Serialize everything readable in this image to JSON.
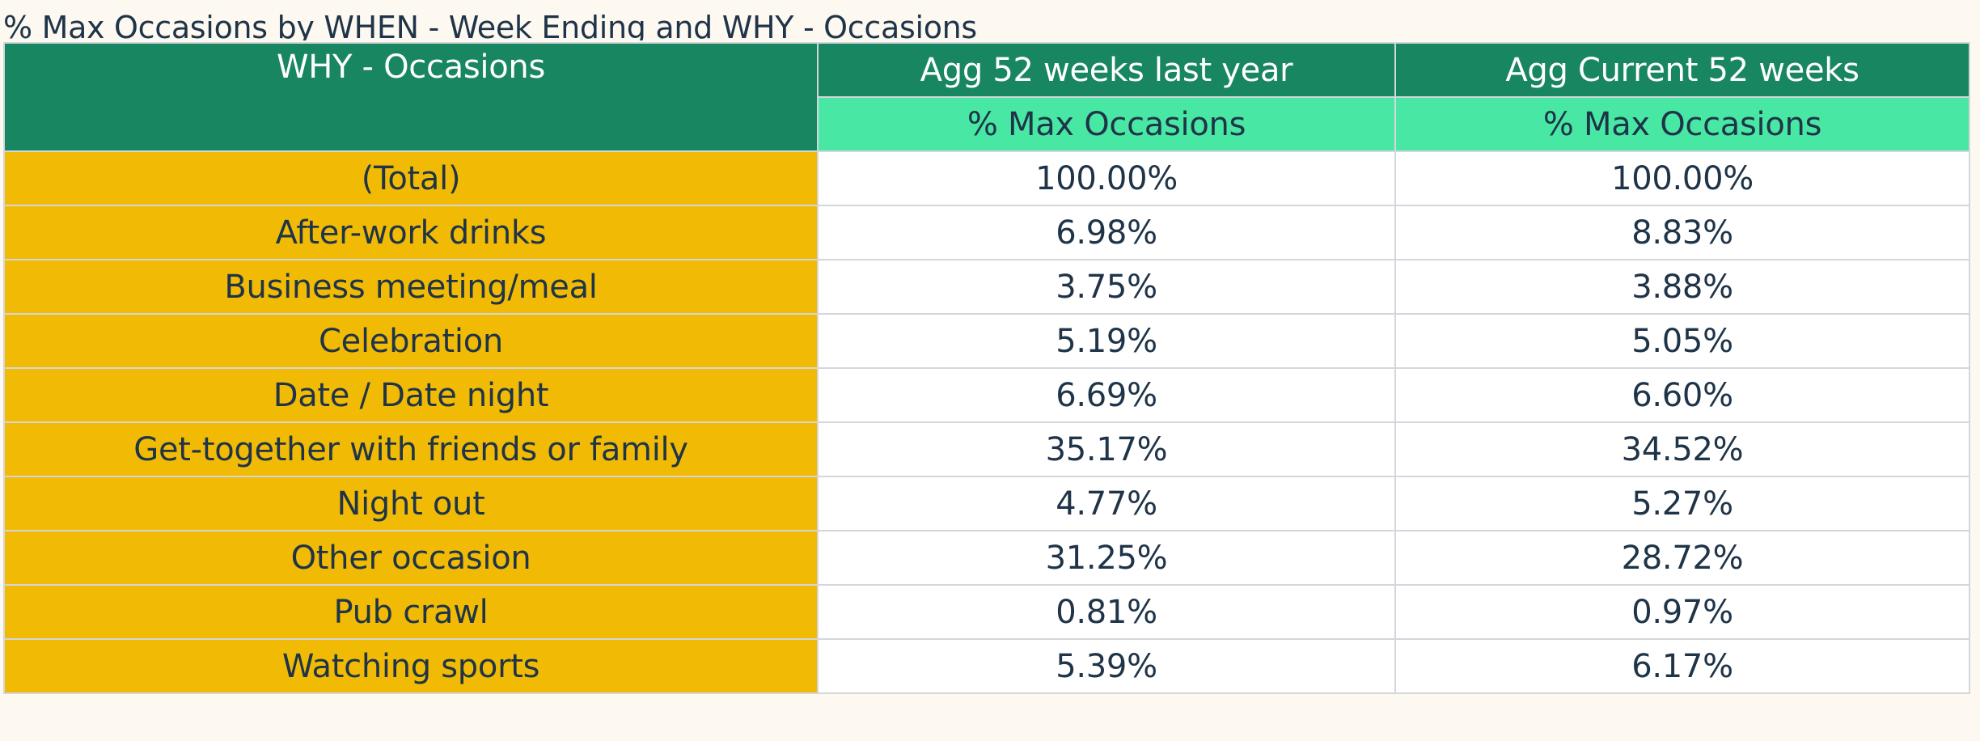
{
  "title": "% Max Occasions by WHEN - Week Ending and WHY - Occasions",
  "colors": {
    "header_dark": "#188661",
    "header_light": "#48e8a4",
    "row_label_bg": "#f1bb05",
    "cell_bg": "#ffffff",
    "text": "#1f3448"
  },
  "table": {
    "row_header": "WHY - Occasions",
    "columns": [
      {
        "label": "Agg 52 weeks last year",
        "measure": "% Max Occasions"
      },
      {
        "label": "Agg Current 52 weeks",
        "measure": "% Max Occasions"
      }
    ],
    "rows": [
      {
        "label": "(Total)",
        "values": [
          "100.00%",
          "100.00%"
        ]
      },
      {
        "label": "After-work drinks",
        "values": [
          "6.98%",
          "8.83%"
        ]
      },
      {
        "label": "Business meeting/meal",
        "values": [
          "3.75%",
          "3.88%"
        ]
      },
      {
        "label": "Celebration",
        "values": [
          "5.19%",
          "5.05%"
        ]
      },
      {
        "label": "Date / Date night",
        "values": [
          "6.69%",
          "6.60%"
        ]
      },
      {
        "label": "Get-together with friends or family",
        "values": [
          "35.17%",
          "34.52%"
        ]
      },
      {
        "label": "Night out",
        "values": [
          "4.77%",
          "5.27%"
        ]
      },
      {
        "label": "Other occasion",
        "values": [
          "31.25%",
          "28.72%"
        ]
      },
      {
        "label": "Pub crawl",
        "values": [
          "0.81%",
          "0.97%"
        ]
      },
      {
        "label": "Watching sports",
        "values": [
          "5.39%",
          "6.17%"
        ]
      }
    ]
  }
}
